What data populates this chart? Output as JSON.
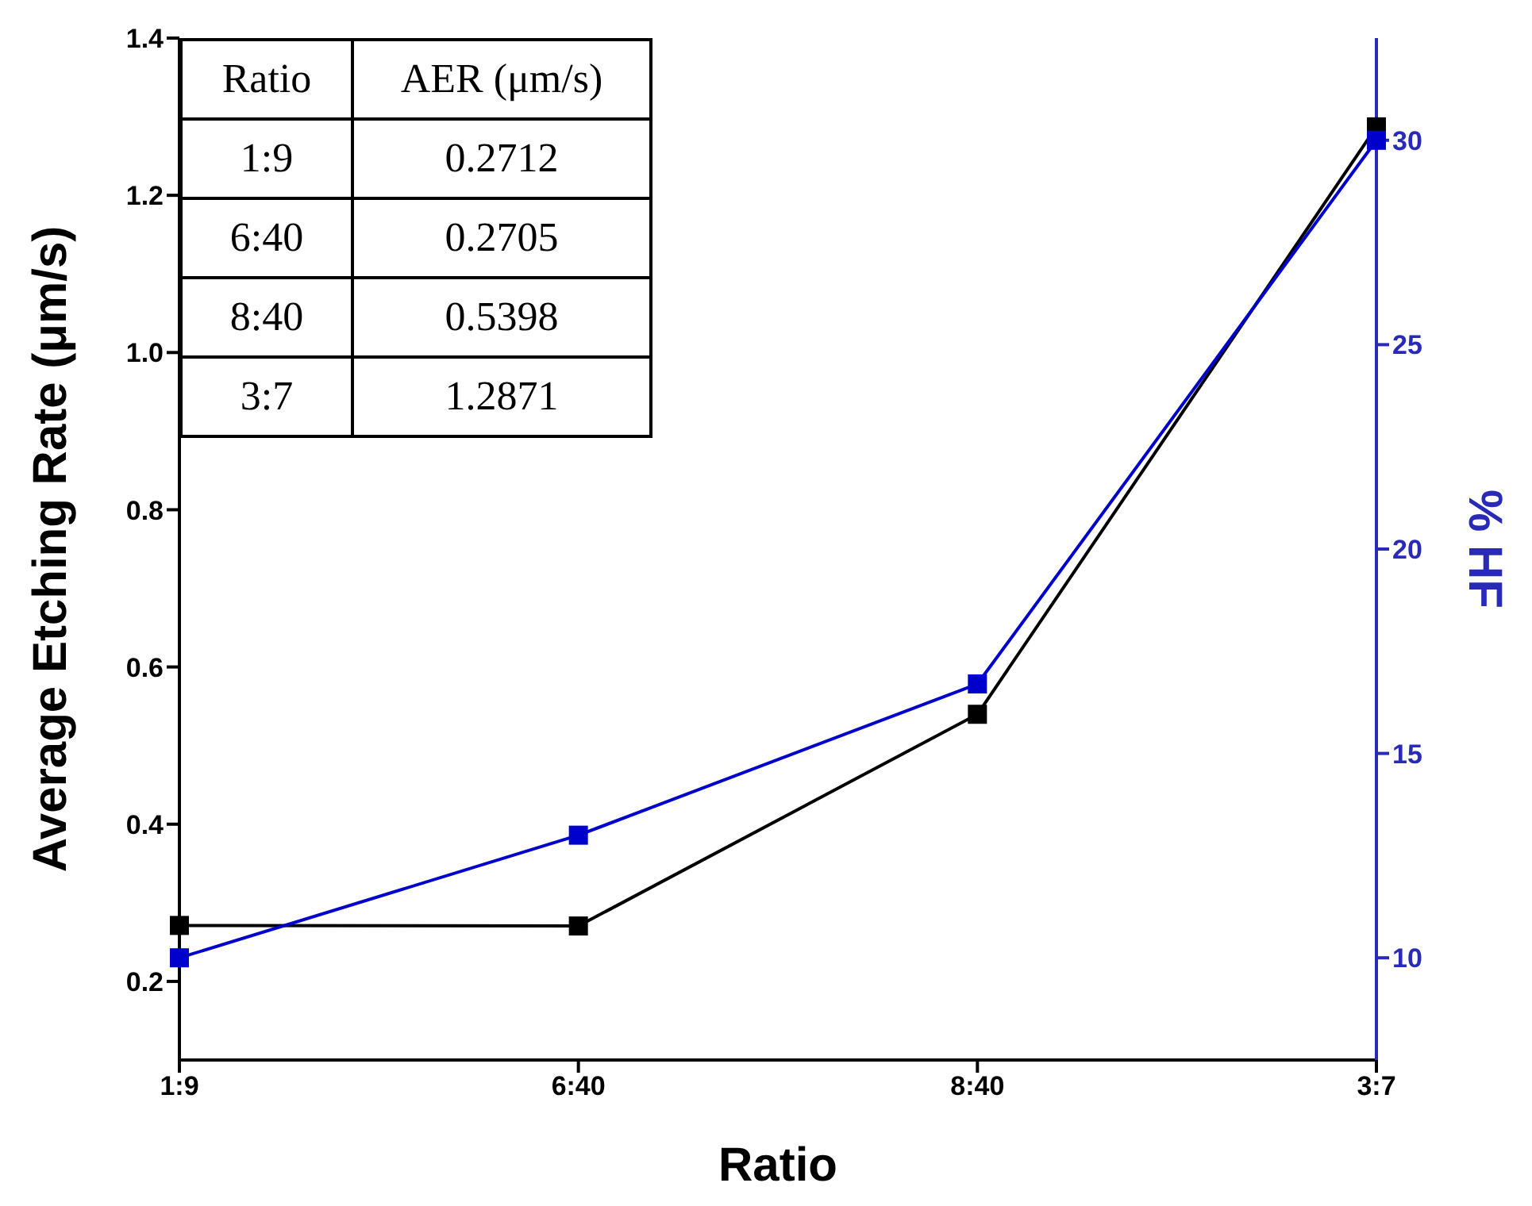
{
  "chart_data": {
    "type": "line",
    "xlabel": "Ratio",
    "ylabel": "Average Etching Rate (μm/s)",
    "y2label": "% HF",
    "categories": [
      "1:9",
      "6:40",
      "8:40",
      "3:7"
    ],
    "series": [
      {
        "color": "#000000",
        "values": [
          0.2712,
          0.2705,
          0.5398,
          1.2871
        ]
      },
      {
        "color": "#0000cc",
        "values": [
          10,
          13.0,
          16.7,
          30
        ],
        "axis": "y2"
      }
    ],
    "ylim": [
      0.1,
      1.4
    ],
    "yticks": [
      0.2,
      0.4,
      0.6,
      0.8,
      {
        "value": 1,
        "label": "1.0"
      },
      1.2,
      1.4
    ],
    "y2lim": [
      7.5,
      32.5
    ],
    "y2ticks": [
      10,
      15,
      20,
      25,
      30
    ],
    "annotations": [
      "Ratio",
      "AER (μm/s)",
      "1:9",
      "0.2712",
      "6:40",
      "0.2705",
      "8:40",
      "0.5398",
      "3:7",
      "1.2871"
    ],
    "marker": "square",
    "line_style": "solid",
    "legend": false,
    "grid": false
  }
}
